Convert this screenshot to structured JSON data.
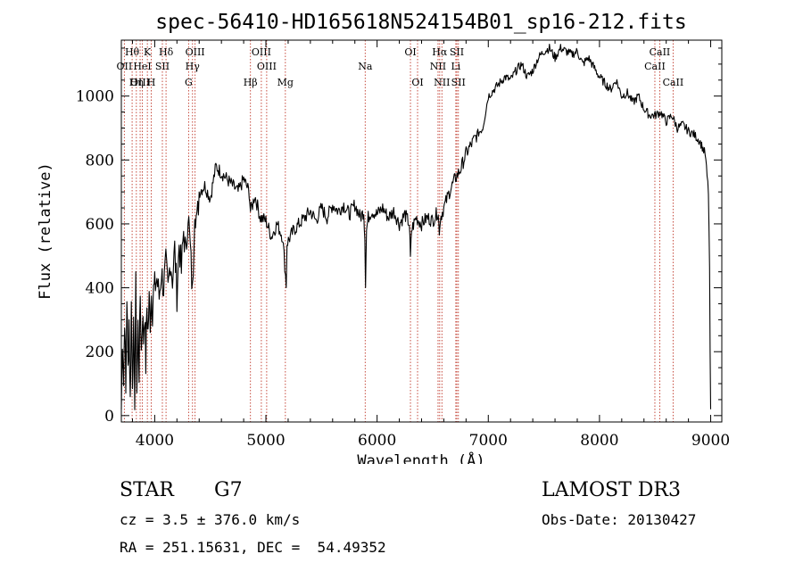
{
  "chart_data": {
    "type": "line",
    "title": "spec-56410-HD165618N524154B01_sp16-212.fits",
    "xlabel": "Wavelength (Å)",
    "ylabel": "Flux (relative)",
    "xlim": [
      3700,
      9100
    ],
    "ylim": [
      -20,
      1175
    ],
    "x_ticks": [
      4000,
      5000,
      6000,
      7000,
      8000,
      9000
    ],
    "y_ticks": [
      0,
      200,
      400,
      600,
      800,
      1000
    ],
    "x_tick_labels": [
      "4000",
      "5000",
      "6000",
      "7000",
      "8000",
      "9000"
    ],
    "y_tick_labels": [
      "0",
      "200",
      "400",
      "600",
      "800",
      "1000"
    ],
    "grid": false,
    "series": [
      {
        "name": "flux",
        "x": [
          3700,
          3710,
          3720,
          3730,
          3740,
          3750,
          3760,
          3770,
          3780,
          3790,
          3800,
          3810,
          3820,
          3830,
          3840,
          3850,
          3860,
          3870,
          3880,
          3890,
          3900,
          3910,
          3920,
          3930,
          3940,
          3950,
          3960,
          3970,
          3980,
          3990,
          4000,
          4020,
          4040,
          4060,
          4080,
          4100,
          4120,
          4140,
          4160,
          4180,
          4200,
          4220,
          4240,
          4260,
          4280,
          4300,
          4320,
          4340,
          4360,
          4380,
          4400,
          4450,
          4500,
          4550,
          4600,
          4650,
          4700,
          4750,
          4800,
          4850,
          4861,
          4880,
          4900,
          4950,
          5000,
          5050,
          5100,
          5150,
          5170,
          5183,
          5190,
          5220,
          5250,
          5300,
          5350,
          5400,
          5450,
          5500,
          5550,
          5600,
          5650,
          5700,
          5750,
          5800,
          5850,
          5880,
          5890,
          5896,
          5905,
          5920,
          5950,
          6000,
          6050,
          6100,
          6150,
          6200,
          6250,
          6290,
          6300,
          6310,
          6350,
          6400,
          6450,
          6500,
          6550,
          6560,
          6563,
          6570,
          6580,
          6600,
          6650,
          6700,
          6750,
          6800,
          6850,
          6900,
          6950,
          7000,
          7050,
          7100,
          7150,
          7200,
          7250,
          7300,
          7350,
          7400,
          7450,
          7500,
          7550,
          7600,
          7650,
          7700,
          7750,
          7800,
          7850,
          7900,
          7950,
          8000,
          8050,
          8100,
          8150,
          8200,
          8250,
          8300,
          8350,
          8400,
          8450,
          8500,
          8550,
          8600,
          8650,
          8700,
          8750,
          8800,
          8850,
          8900,
          8950,
          8980,
          8990,
          8995,
          9000
        ],
        "y": [
          20,
          250,
          100,
          320,
          60,
          380,
          140,
          300,
          40,
          350,
          120,
          260,
          60,
          400,
          80,
          280,
          140,
          380,
          200,
          320,
          240,
          330,
          160,
          340,
          260,
          360,
          300,
          380,
          330,
          390,
          400,
          430,
          370,
          450,
          400,
          470,
          390,
          490,
          430,
          520,
          380,
          540,
          450,
          580,
          500,
          640,
          520,
          380,
          660,
          600,
          700,
          720,
          680,
          780,
          760,
          740,
          720,
          700,
          740,
          700,
          640,
          660,
          690,
          620,
          610,
          560,
          600,
          560,
          470,
          410,
          540,
          560,
          580,
          600,
          620,
          640,
          610,
          650,
          620,
          660,
          640,
          660,
          630,
          660,
          620,
          640,
          560,
          420,
          580,
          620,
          640,
          630,
          650,
          620,
          640,
          600,
          630,
          600,
          490,
          580,
          620,
          600,
          620,
          610,
          640,
          560,
          600,
          620,
          630,
          650,
          700,
          740,
          770,
          820,
          850,
          880,
          900,
          1000,
          1020,
          1040,
          1060,
          1050,
          1080,
          1100,
          1060,
          1080,
          1120,
          1140,
          1150,
          1120,
          1150,
          1140,
          1130,
          1140,
          1100,
          1120,
          1090,
          1060,
          1040,
          1020,
          1050,
          1000,
          1010,
          980,
          1000,
          960,
          940,
          940,
          950,
          920,
          940,
          900,
          910,
          890,
          880,
          860,
          820,
          700,
          450,
          200,
          20
        ]
      }
    ],
    "annotations": [
      {
        "label": "Hθ",
        "x": 3797,
        "row": 1
      },
      {
        "label": "OII",
        "x": 3727,
        "row": 2
      },
      {
        "label": "OIII",
        "x": 3869,
        "row": 3
      },
      {
        "label": "K",
        "x": 3934,
        "row": 1
      },
      {
        "label": "HeI",
        "x": 3889,
        "row": 2
      },
      {
        "label": "Hη",
        "x": 3835,
        "row": 3
      },
      {
        "label": "SII",
        "x": 4069,
        "row": 2
      },
      {
        "label": "H",
        "x": 3969,
        "row": 3
      },
      {
        "label": "Hδ",
        "x": 4102,
        "row": 1
      },
      {
        "label": "OIII",
        "x": 4363,
        "row": 1
      },
      {
        "label": "Hγ",
        "x": 4340,
        "row": 2
      },
      {
        "label": "G",
        "x": 4305,
        "row": 3
      },
      {
        "label": "OIII",
        "x": 4959,
        "row": 1
      },
      {
        "label": "OIII",
        "x": 5007,
        "row": 2
      },
      {
        "label": "Hβ",
        "x": 4861,
        "row": 3
      },
      {
        "label": "Mg",
        "x": 5175,
        "row": 3
      },
      {
        "label": "Na",
        "x": 5893,
        "row": 2
      },
      {
        "label": "OI",
        "x": 6300,
        "row": 1
      },
      {
        "label": "OI",
        "x": 6364,
        "row": 3
      },
      {
        "label": "Hα",
        "x": 6563,
        "row": 1
      },
      {
        "label": "NII",
        "x": 6548,
        "row": 2
      },
      {
        "label": "NII",
        "x": 6583,
        "row": 3
      },
      {
        "label": "SII",
        "x": 6717,
        "row": 1
      },
      {
        "label": "Li",
        "x": 6708,
        "row": 2
      },
      {
        "label": "SII",
        "x": 6731,
        "row": 3
      },
      {
        "label": "CaII",
        "x": 8542,
        "row": 1
      },
      {
        "label": "CaII",
        "x": 8498,
        "row": 2
      },
      {
        "label": "CaII",
        "x": 8662,
        "row": 3
      }
    ]
  },
  "footer": {
    "object_class": "STAR",
    "subclass": "G7",
    "survey": "LAMOST DR3",
    "redshift_line": "cz = 3.5 ± 376.0 km/s",
    "obs_date_line": "Obs-Date: 20130427",
    "coords_line": "RA = 251.15631, DEC =  54.49352"
  }
}
